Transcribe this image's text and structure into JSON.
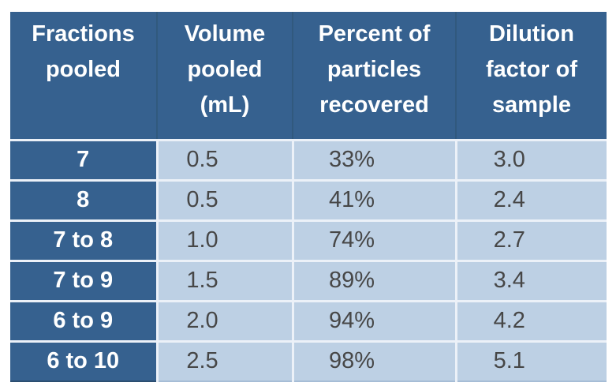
{
  "chart_data": {
    "type": "table",
    "columns": [
      "Fractions pooled",
      "Volume pooled (mL)",
      "Percent of particles recovered",
      "Dilution factor of sample"
    ],
    "rows": [
      [
        "7",
        "0.5",
        "33%",
        "3.0"
      ],
      [
        "8",
        "0.5",
        "41%",
        "2.4"
      ],
      [
        "7 to 8",
        "1.0",
        "74%",
        "2.7"
      ],
      [
        "7 to 9",
        "1.5",
        "89%",
        "3.4"
      ],
      [
        "6 to 9",
        "2.0",
        "94%",
        "4.2"
      ],
      [
        "6 to 10",
        "2.5",
        "98%",
        "5.1"
      ]
    ]
  },
  "colors": {
    "header_bg": "#36618F",
    "row_label_bg": "#36618F",
    "data_cell_bg": "#BDD0E4",
    "grid_line": "#ECF1F8",
    "header_text": "#FFFFFF",
    "data_text": "#474747"
  }
}
